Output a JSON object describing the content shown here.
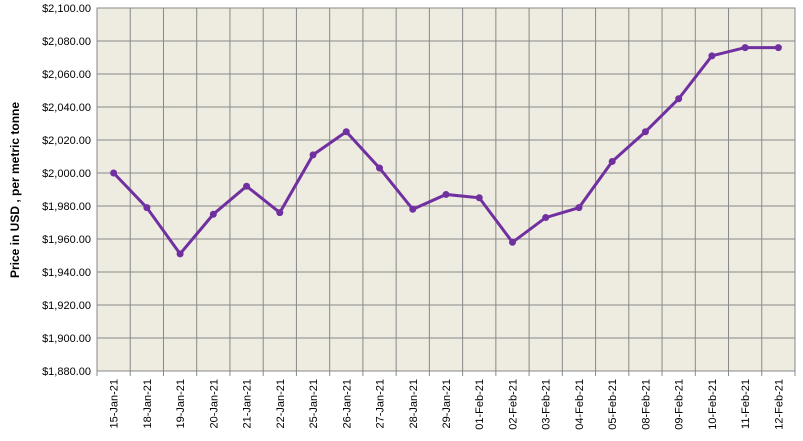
{
  "chart_data": {
    "type": "line",
    "y_label": "Price in USD , per metric tonne",
    "categories": [
      "15-Jan-21",
      "18-Jan-21",
      "19-Jan-21",
      "20-Jan-21",
      "21-Jan-21",
      "22-Jan-21",
      "25-Jan-21",
      "26-Jan-21",
      "27-Jan-21",
      "28-Jan-21",
      "29-Jan-21",
      "01-Feb-21",
      "02-Feb-21",
      "03-Feb-21",
      "04-Feb-21",
      "05-Feb-21",
      "08-Feb-21",
      "09-Feb-21",
      "10-Feb-21",
      "11-Feb-21",
      "12-Feb-21"
    ],
    "values": [
      2000,
      1979,
      1951,
      1975,
      1992,
      1976,
      2011,
      2025,
      2003,
      1978,
      1987,
      1985,
      1958,
      1973,
      1979,
      2007,
      2025,
      2045,
      2071,
      2076,
      2076
    ],
    "color": "#7030a0",
    "ylim": [
      1880,
      2100
    ],
    "yticks": [
      {
        "value": 1880,
        "label": "$1,880.00"
      },
      {
        "value": 1900,
        "label": "$1,900.00"
      },
      {
        "value": 1920,
        "label": "$1,920.00"
      },
      {
        "value": 1940,
        "label": "$1,940.00"
      },
      {
        "value": 1960,
        "label": "$1,960.00"
      },
      {
        "value": 1980,
        "label": "$1,980.00"
      },
      {
        "value": 2000,
        "label": "$2,000.00"
      },
      {
        "value": 2020,
        "label": "$2,020.00"
      },
      {
        "value": 2040,
        "label": "$2,040.00"
      },
      {
        "value": 2060,
        "label": "$2,060.00"
      },
      {
        "value": 2080,
        "label": "$2,080.00"
      },
      {
        "value": 2100,
        "label": "$2,100.00"
      }
    ],
    "grid": true
  }
}
